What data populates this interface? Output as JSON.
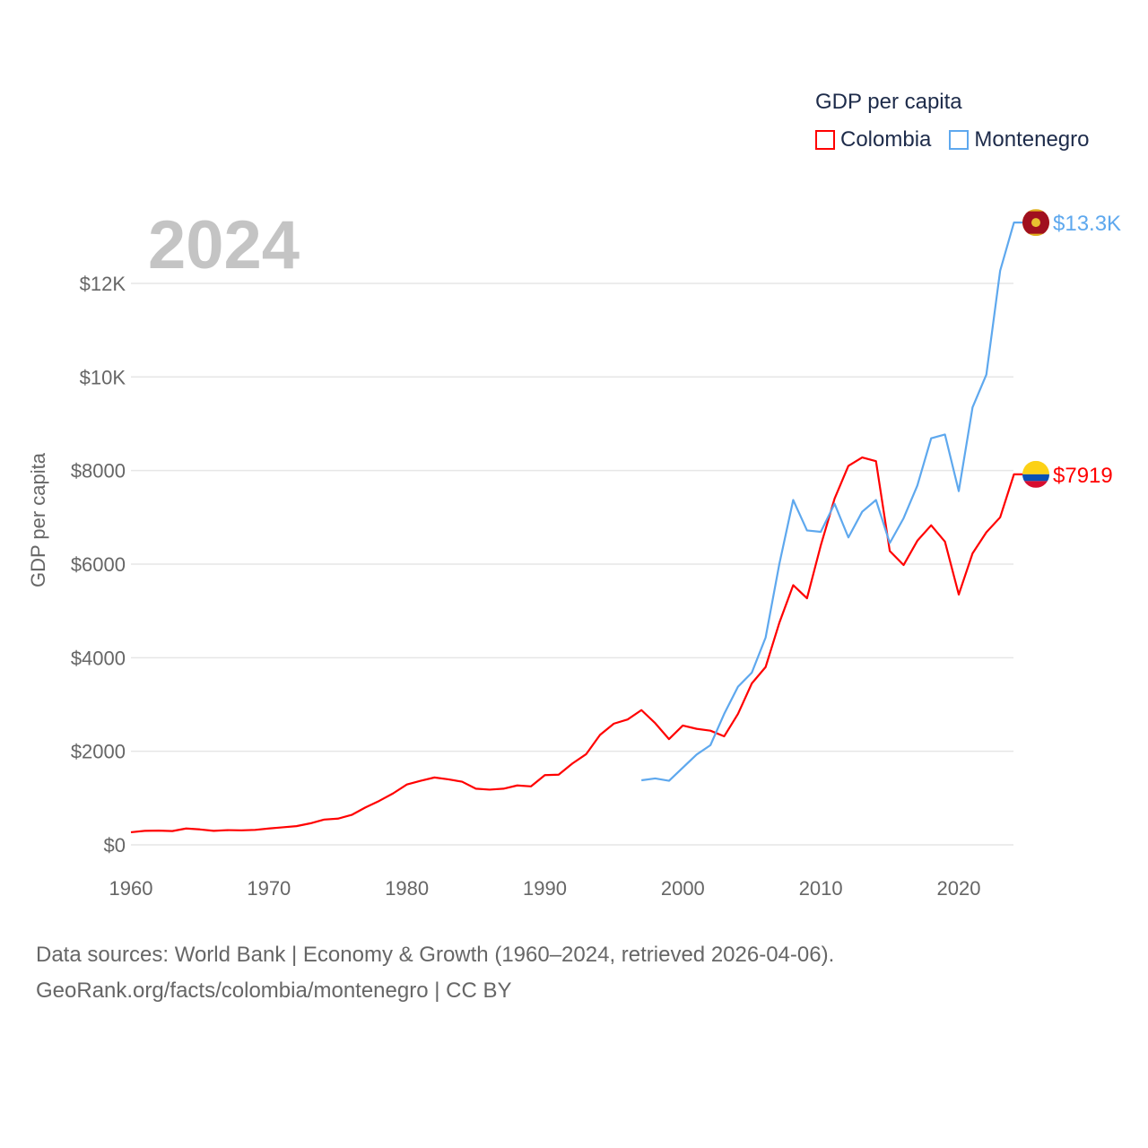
{
  "chart_data": {
    "type": "line",
    "title": "GDP per capita",
    "ylabel": "GDP per capita",
    "xlabel": "",
    "year_label": "2024",
    "xlim": [
      1960,
      2024
    ],
    "ylim": [
      0,
      13300
    ],
    "x_ticks": [
      "1960",
      "1970",
      "1980",
      "1990",
      "2000",
      "2010",
      "2020"
    ],
    "y_ticks": [
      {
        "value": 0,
        "label": "$0"
      },
      {
        "value": 2000,
        "label": "$2000"
      },
      {
        "value": 4000,
        "label": "$4000"
      },
      {
        "value": 6000,
        "label": "$6000"
      },
      {
        "value": 8000,
        "label": "$8000"
      },
      {
        "value": 10000,
        "label": "$10K"
      },
      {
        "value": 12000,
        "label": "$12K"
      }
    ],
    "grid": true,
    "legend_placement": "top-right",
    "series": [
      {
        "name": "Colombia",
        "color": "#ff0000",
        "end_label": "$7919",
        "start_year": 1960,
        "values": [
          270,
          300,
          305,
          295,
          350,
          330,
          300,
          315,
          310,
          320,
          350,
          375,
          400,
          460,
          540,
          560,
          640,
          800,
          940,
          1100,
          1290,
          1370,
          1440,
          1400,
          1350,
          1200,
          1180,
          1200,
          1270,
          1250,
          1490,
          1500,
          1740,
          1940,
          2350,
          2590,
          2680,
          2880,
          2600,
          2260,
          2550,
          2480,
          2440,
          2320,
          2800,
          3450,
          3800,
          4750,
          5550,
          5270,
          6400,
          7400,
          8100,
          8280,
          8200,
          6280,
          5980,
          6500,
          6830,
          6480,
          5350,
          6230,
          6680,
          7000,
          7919
        ]
      },
      {
        "name": "Montenegro",
        "color": "#5ea8ee",
        "end_label": "$13.3K",
        "start_year": 1997,
        "values": [
          1380,
          1420,
          1370,
          1650,
          1930,
          2130,
          2800,
          3380,
          3680,
          4430,
          6010,
          7370,
          6720,
          6690,
          7290,
          6570,
          7120,
          7370,
          6450,
          6980,
          7680,
          8690,
          8770,
          7560,
          9350,
          10050,
          12270,
          13300
        ]
      }
    ]
  },
  "source": {
    "line1": "Data sources: World Bank | Economy & Growth (1960–2024, retrieved 2026-04-06).",
    "line2": "GeoRank.org/facts/colombia/montenegro | CC BY"
  }
}
